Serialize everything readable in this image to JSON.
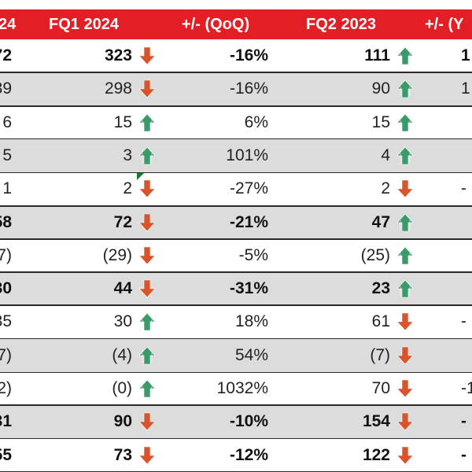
{
  "header": {
    "col_prev_partial": "24",
    "col_fq1_2024": "FQ1 2024",
    "col_qoq": "+/- (QoQ)",
    "col_fq2_2023": "FQ2 2023",
    "col_yoy_partial": "+/- (Y"
  },
  "colors": {
    "header_red": "#e41e25",
    "arrow_up": "#3a9a6a",
    "arrow_down": "#d9542b",
    "row_shade": "#dcdcdc"
  },
  "rows": [
    {
      "prev": "72",
      "fq1": "323",
      "fq1_trend": "down",
      "qoq": "-16%",
      "fq2": "111",
      "fq2_trend": "up",
      "yoy": "1",
      "bold": true,
      "shade": false
    },
    {
      "prev": "39",
      "fq1": "298",
      "fq1_trend": "down",
      "qoq": "-16%",
      "fq2": "90",
      "fq2_trend": "up",
      "yoy": "1",
      "bold": false,
      "shade": true
    },
    {
      "prev": "6",
      "fq1": "15",
      "fq1_trend": "up",
      "qoq": "6%",
      "fq2": "15",
      "fq2_trend": "up",
      "yoy": "",
      "bold": false,
      "shade": false
    },
    {
      "prev": "5",
      "fq1": "3",
      "fq1_trend": "up",
      "qoq": "101%",
      "fq2": "4",
      "fq2_trend": "up",
      "yoy": "",
      "bold": false,
      "shade": true
    },
    {
      "prev": "1",
      "fq1": "2",
      "fq1_trend": "down",
      "qoq": "-27%",
      "fq2": "2",
      "fq2_trend": "down",
      "yoy": "-",
      "bold": false,
      "shade": false
    },
    {
      "prev": "58",
      "fq1": "72",
      "fq1_trend": "down",
      "qoq": "-21%",
      "fq2": "47",
      "fq2_trend": "up",
      "yoy": "",
      "bold": true,
      "shade": true
    },
    {
      "prev": "7)",
      "fq1": "(29)",
      "fq1_trend": "down",
      "qoq": "-5%",
      "fq2": "(25)",
      "fq2_trend": "up",
      "yoy": "",
      "bold": false,
      "shade": false
    },
    {
      "prev": "30",
      "fq1": "44",
      "fq1_trend": "down",
      "qoq": "-31%",
      "fq2": "23",
      "fq2_trend": "up",
      "yoy": "",
      "bold": true,
      "shade": true
    },
    {
      "prev": "35",
      "fq1": "30",
      "fq1_trend": "up",
      "qoq": "18%",
      "fq2": "61",
      "fq2_trend": "down",
      "yoy": "-",
      "bold": false,
      "shade": false
    },
    {
      "prev": "7)",
      "fq1": "(4)",
      "fq1_trend": "up",
      "qoq": "54%",
      "fq2": "(7)",
      "fq2_trend": "down",
      "yoy": "",
      "bold": false,
      "shade": true
    },
    {
      "prev": "2)",
      "fq1": "(0)",
      "fq1_trend": "up",
      "qoq": "1032%",
      "fq2": "70",
      "fq2_trend": "down",
      "yoy": "-1",
      "bold": false,
      "shade": false
    },
    {
      "prev": "31",
      "fq1": "90",
      "fq1_trend": "down",
      "qoq": "-10%",
      "fq2": "154",
      "fq2_trend": "down",
      "yoy": "-",
      "bold": true,
      "shade": true
    },
    {
      "prev": "55",
      "fq1": "73",
      "fq1_trend": "down",
      "qoq": "-12%",
      "fq2": "122",
      "fq2_trend": "down",
      "yoy": "-",
      "bold": true,
      "shade": false
    }
  ]
}
